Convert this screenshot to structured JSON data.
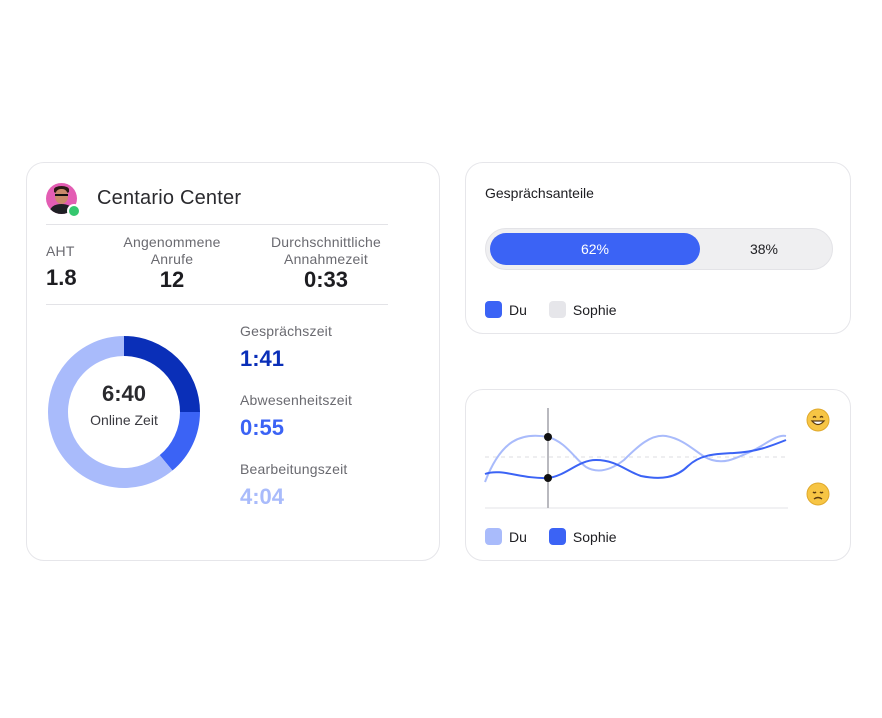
{
  "profile": {
    "name": "Centario Center",
    "status": "online"
  },
  "stats": [
    {
      "label": "AHT",
      "value": "1.8"
    },
    {
      "label": "Angenommene Anrufe",
      "value": "12"
    },
    {
      "label": "Durchschnittliche Annahmezeit",
      "value": "0:33"
    }
  ],
  "donut": {
    "center_value": "6:40",
    "center_label": "Online Zeit",
    "segments": [
      {
        "name": "Gesprächszeit",
        "fraction": 0.25,
        "color": "#0a2fb8"
      },
      {
        "name": "Abwesenheitszeit",
        "fraction": 0.14,
        "color": "#3b63f5"
      },
      {
        "name": "Bearbeitungszeit",
        "fraction": 0.61,
        "color": "#a9bbfb"
      }
    ]
  },
  "metrics": [
    {
      "label": "Gesprächszeit",
      "value": "1:41",
      "color": "#0a2fb8"
    },
    {
      "label": "Abwesenheitszeit",
      "value": "0:55",
      "color": "#3b63f5"
    },
    {
      "label": "Bearbeitungszeit",
      "value": "4:04",
      "color": "#a9bbfb"
    }
  ],
  "share": {
    "title": "Gesprächsanteile",
    "du_percent": 62,
    "du_label": "62%",
    "sophie_label": "38%",
    "legend": [
      {
        "name": "Du",
        "color": "#3b63f5"
      },
      {
        "name": "Sophie",
        "color": "#e6e6ea"
      }
    ]
  },
  "sentiment": {
    "top_icon": "grinning-face-icon",
    "bottom_icon": "sad-face-icon",
    "legend": [
      {
        "name": "Du",
        "color": "#a9bbfb"
      },
      {
        "name": "Sophie",
        "color": "#3b63f5"
      }
    ]
  }
}
